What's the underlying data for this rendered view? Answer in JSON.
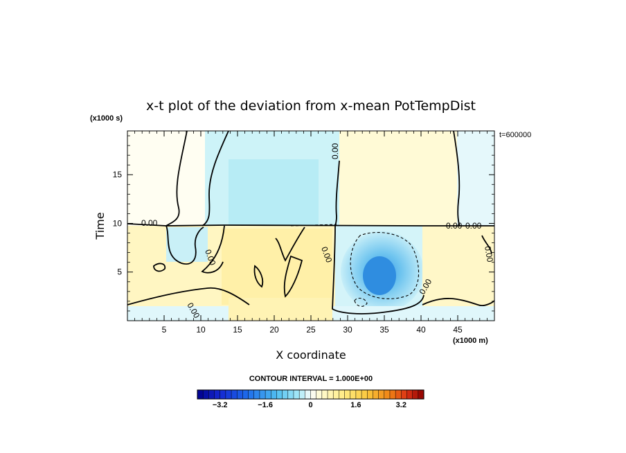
{
  "chart_data": {
    "type": "heatmap",
    "title": "x-t plot of the deviation from x-mean PotTempDist",
    "xlabel": "X coordinate",
    "ylabel": "Time",
    "x_unit": "(x1000 m)",
    "y_unit": "(x1000 s)",
    "time_stamp": "t=600000",
    "xlim": [
      0,
      50
    ],
    "ylim": [
      0,
      19.5
    ],
    "x_ticks": [
      5,
      10,
      15,
      20,
      25,
      30,
      35,
      40,
      45
    ],
    "y_ticks": [
      5,
      10,
      15
    ],
    "x_tick_labels": [
      "5",
      "10",
      "15",
      "20",
      "25",
      "30",
      "35",
      "40",
      "45"
    ],
    "y_tick_labels": [
      "5",
      "10",
      "15"
    ],
    "contour_interval": "CONTOUR INTERVAL = 1.000E+00",
    "contour_labels": [
      "0.00",
      "0.00",
      "0.00",
      "0.00",
      "0.00",
      "0.00",
      "0.00",
      "0.00",
      "0.00"
    ],
    "colorbar": {
      "min": -4.0,
      "max": 4.0,
      "step": 0.2,
      "tick_values": [
        -3.2,
        -1.6,
        0,
        1.6,
        3.2
      ],
      "tick_labels": [
        "−3.2",
        "−1.6",
        "0",
        "1.6",
        "3.2"
      ]
    },
    "regions": [
      {
        "name": "upper-left-warm",
        "x": [
          0,
          12.5
        ],
        "t": [
          10,
          19.5
        ],
        "value": 0.15
      },
      {
        "name": "upper-center-cool",
        "x": [
          12.5,
          29
        ],
        "t": [
          10,
          19.5
        ],
        "value": -0.45
      },
      {
        "name": "upper-right-warm",
        "x": [
          29,
          45
        ],
        "t": [
          10,
          19.5
        ],
        "value": 0.3
      },
      {
        "name": "upper-far-right-cool",
        "x": [
          45,
          50
        ],
        "t": [
          10,
          19.5
        ],
        "value": -0.2
      },
      {
        "name": "lower-left-warm",
        "x": [
          0,
          29
        ],
        "t": [
          1.5,
          10
        ],
        "value": 0.6
      },
      {
        "name": "lower-right-cold-pool",
        "x": [
          29,
          41
        ],
        "t": [
          1,
          10
        ],
        "value": -1.5
      },
      {
        "name": "cold-pool-core",
        "x": [
          33,
          37
        ],
        "t": [
          3,
          7
        ],
        "value": -2.4
      },
      {
        "name": "lower-right-warm",
        "x": [
          41,
          50
        ],
        "t": [
          1.5,
          10
        ],
        "value": 0.5
      },
      {
        "name": "bottom-cool-band",
        "x": [
          0,
          50
        ],
        "t": [
          0,
          1.5
        ],
        "value": -0.3
      }
    ],
    "colors": {
      "neg_strong": "#1e64d8",
      "neg_mid": "#5ab8ee",
      "neg_light": "#a8e6f6",
      "neg_faint": "#dcf6fb",
      "zero": "#fefef6",
      "pos_faint": "#fffad8",
      "pos_light": "#fff2b0",
      "pos_mid": "#f8e070",
      "pos_strong": "#e08010"
    }
  }
}
